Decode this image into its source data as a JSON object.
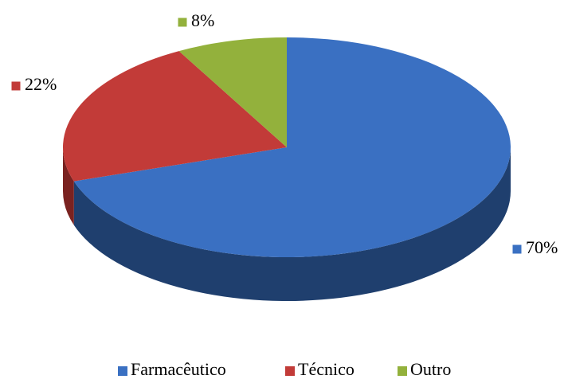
{
  "chart_data": {
    "type": "pie",
    "categories": [
      "Farmacêutico",
      "Técnico",
      "Outro"
    ],
    "values": [
      70,
      22,
      8
    ],
    "value_labels": [
      "70%",
      "22%",
      "8%"
    ],
    "colors": [
      "#3a70c2",
      "#c23b38",
      "#93b13c"
    ],
    "side_colors": [
      "#1f3f6e",
      "#7a2220",
      "#5a6e22"
    ],
    "legend": "bottom"
  }
}
